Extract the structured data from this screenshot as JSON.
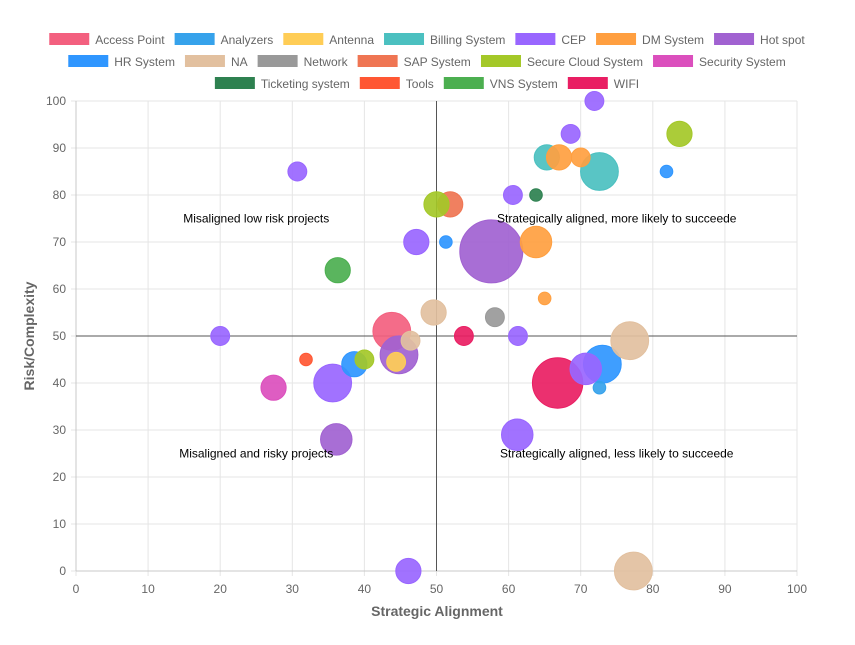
{
  "chart_data": {
    "type": "scatter",
    "title": "",
    "xlabel": "Strategic Alignment",
    "ylabel": "Risk/Complexity",
    "xlim": [
      0,
      100
    ],
    "ylim": [
      0,
      100
    ],
    "xticks": [
      0,
      10,
      20,
      30,
      40,
      50,
      60,
      70,
      80,
      90,
      100
    ],
    "yticks": [
      0,
      10,
      20,
      30,
      40,
      50,
      60,
      70,
      80,
      90,
      100
    ],
    "grid": true,
    "legend_position": "top",
    "reference_lines": {
      "x": 50,
      "y": 50
    },
    "quadrant_labels": [
      {
        "text": "Misaligned low risk projects",
        "x": 25,
        "y": 75
      },
      {
        "text": "Strategically aligned, more likely to succeede",
        "x": 75,
        "y": 75
      },
      {
        "text": "Misaligned and risky projects",
        "x": 25,
        "y": 25
      },
      {
        "text": "Strategically aligned, less likely to succeede",
        "x": 75,
        "y": 25
      }
    ],
    "series": [
      {
        "name": "Access Point",
        "color": "#f3607f",
        "points": [
          {
            "x": 43.8,
            "y": 51,
            "size": 3
          }
        ]
      },
      {
        "name": "Analyzers",
        "color": "#36a2eb",
        "points": [
          {
            "x": 72.6,
            "y": 39,
            "size": 1
          }
        ]
      },
      {
        "name": "Antenna",
        "color": "#ffcd56",
        "points": [
          {
            "x": 44.4,
            "y": 44.5,
            "size": 1.5
          }
        ]
      },
      {
        "name": "Billing System",
        "color": "#4bc0c0",
        "points": [
          {
            "x": 72.6,
            "y": 85,
            "size": 3
          },
          {
            "x": 65.3,
            "y": 88,
            "size": 2
          }
        ]
      },
      {
        "name": "CEP",
        "color": "#9966ff",
        "points": [
          {
            "x": 30.7,
            "y": 85,
            "size": 1.5
          },
          {
            "x": 47.2,
            "y": 70,
            "size": 2
          },
          {
            "x": 60.6,
            "y": 80,
            "size": 1.5
          },
          {
            "x": 68.6,
            "y": 93,
            "size": 1.5
          },
          {
            "x": 71.9,
            "y": 100,
            "size": 1.5
          },
          {
            "x": 35.6,
            "y": 40,
            "size": 3
          },
          {
            "x": 20.0,
            "y": 50,
            "size": 1.5
          },
          {
            "x": 61.2,
            "y": 29,
            "size": 2.5
          },
          {
            "x": 70.7,
            "y": 43,
            "size": 2.5
          },
          {
            "x": 61.3,
            "y": 50,
            "size": 1.5
          },
          {
            "x": 46.1,
            "y": 0,
            "size": 2
          }
        ]
      },
      {
        "name": "DM System",
        "color": "#ff9f40",
        "points": [
          {
            "x": 67.0,
            "y": 88,
            "size": 2
          },
          {
            "x": 70.0,
            "y": 88,
            "size": 1.5
          },
          {
            "x": 63.8,
            "y": 70,
            "size": 2.5
          },
          {
            "x": 65.0,
            "y": 58,
            "size": 1
          }
        ]
      },
      {
        "name": "Hot spot",
        "color": "#a162d1",
        "points": [
          {
            "x": 57.6,
            "y": 68,
            "size": 5
          },
          {
            "x": 36.1,
            "y": 28,
            "size": 2.5
          },
          {
            "x": 44.8,
            "y": 46,
            "size": 3
          }
        ]
      },
      {
        "name": "HR System",
        "color": "#2f96ff",
        "points": [
          {
            "x": 51.3,
            "y": 70,
            "size": 1
          },
          {
            "x": 81.9,
            "y": 85,
            "size": 1
          },
          {
            "x": 38.6,
            "y": 44,
            "size": 2
          },
          {
            "x": 73.0,
            "y": 44,
            "size": 3
          }
        ]
      },
      {
        "name": "NA",
        "color": "#e2c09f",
        "points": [
          {
            "x": 49.6,
            "y": 55,
            "size": 2
          },
          {
            "x": 46.4,
            "y": 49,
            "size": 1.5
          },
          {
            "x": 76.8,
            "y": 49,
            "size": 3
          },
          {
            "x": 77.3,
            "y": 0,
            "size": 3
          }
        ]
      },
      {
        "name": "Network",
        "color": "#999999",
        "points": [
          {
            "x": 58.1,
            "y": 54,
            "size": 1.5
          }
        ]
      },
      {
        "name": "SAP System",
        "color": "#ef7553",
        "points": [
          {
            "x": 51.9,
            "y": 78,
            "size": 2
          }
        ]
      },
      {
        "name": "Secure Cloud System",
        "color": "#a4c828",
        "points": [
          {
            "x": 50.0,
            "y": 78,
            "size": 2
          },
          {
            "x": 83.7,
            "y": 93,
            "size": 2
          },
          {
            "x": 40.0,
            "y": 45,
            "size": 1.5
          }
        ]
      },
      {
        "name": "Security System",
        "color": "#db4fbd",
        "points": [
          {
            "x": 27.4,
            "y": 39,
            "size": 2
          }
        ]
      },
      {
        "name": "Ticketing system",
        "color": "#2e8150",
        "points": [
          {
            "x": 63.8,
            "y": 80,
            "size": 1
          }
        ]
      },
      {
        "name": "Tools",
        "color": "#ff5733",
        "points": [
          {
            "x": 31.9,
            "y": 45,
            "size": 1
          }
        ]
      },
      {
        "name": "VNS System",
        "color": "#4caf50",
        "points": [
          {
            "x": 36.3,
            "y": 64,
            "size": 2
          }
        ]
      },
      {
        "name": "WIFI",
        "color": "#e91e63",
        "points": [
          {
            "x": 53.8,
            "y": 50,
            "size": 1.5
          },
          {
            "x": 66.8,
            "y": 40,
            "size": 4
          }
        ]
      }
    ]
  }
}
